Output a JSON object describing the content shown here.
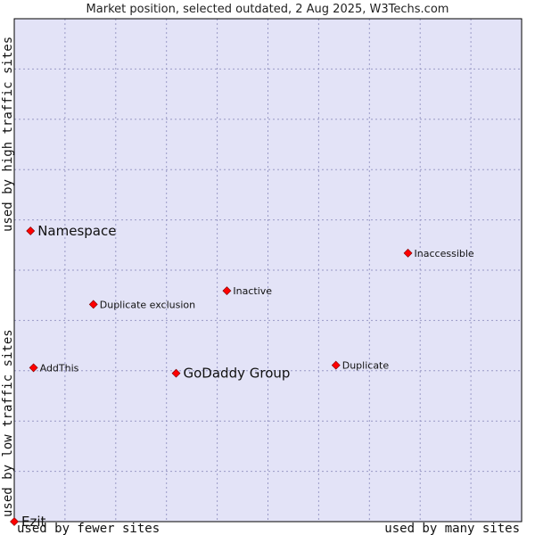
{
  "chart_data": {
    "type": "scatter",
    "title": "Market position, selected outdated, 2 Aug 2025, W3Techs.com",
    "xlabel_left": "used by fewer sites",
    "xlabel_right": "used by many sites",
    "ylabel_bottom": "used by low traffic sites",
    "ylabel_top": "used by high traffic sites",
    "xlim": [
      0,
      100
    ],
    "ylim": [
      0,
      100
    ],
    "grid": true,
    "colors": {
      "plot_bg": "#e3e3f7",
      "frame": "#000000",
      "point": "#ff0000"
    },
    "points": [
      {
        "label": "Namespace",
        "x": 3.2,
        "y": 57.8,
        "size": "large"
      },
      {
        "label": "Inaccessible",
        "x": 77.6,
        "y": 53.4,
        "size": "small"
      },
      {
        "label": "Inactive",
        "x": 41.9,
        "y": 45.9,
        "size": "small"
      },
      {
        "label": "Duplicate exclusion",
        "x": 15.6,
        "y": 43.2,
        "size": "small"
      },
      {
        "label": "AddThis",
        "x": 3.8,
        "y": 30.6,
        "size": "small"
      },
      {
        "label": "GoDaddy Group",
        "x": 31.9,
        "y": 29.5,
        "size": "large"
      },
      {
        "label": "Duplicate",
        "x": 63.4,
        "y": 31.1,
        "size": "small"
      },
      {
        "label": "Ezit",
        "x": 0,
        "y": 0,
        "size": "large"
      }
    ]
  }
}
